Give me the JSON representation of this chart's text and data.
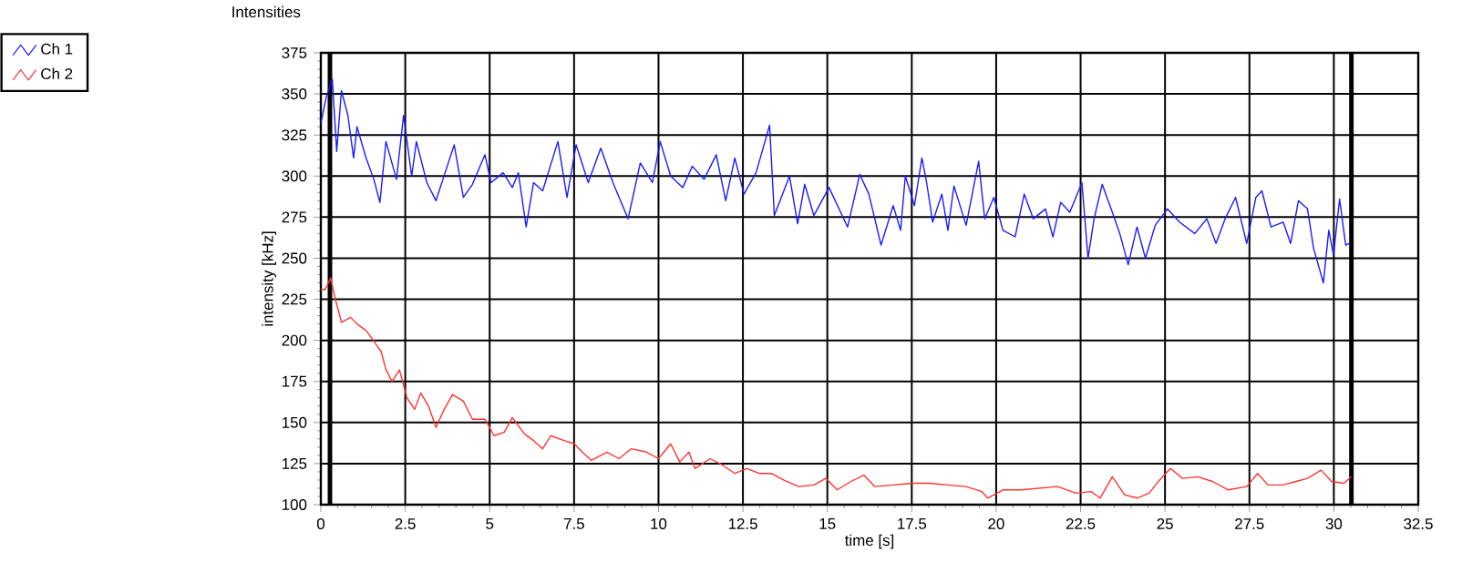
{
  "chart_data": {
    "type": "line",
    "title": "Intensities",
    "xlabel": "time [s]",
    "ylabel": "intensity [kHz]",
    "xlim": [
      0,
      32.5
    ],
    "ylim": [
      100,
      375
    ],
    "xticks": [
      0,
      2.5,
      5,
      7.5,
      10,
      12.5,
      15,
      17.5,
      20,
      22.5,
      25,
      27.5,
      30,
      32.5
    ],
    "yticks": [
      100,
      125,
      150,
      175,
      200,
      225,
      250,
      275,
      300,
      325,
      350,
      375
    ],
    "grid": true,
    "legend": "top left",
    "ref_lines": [
      {
        "axis": "x",
        "value": 0.27,
        "color": "#000000"
      },
      {
        "axis": "x",
        "value": 30.52,
        "color": "#000000"
      }
    ],
    "series": [
      {
        "name": "Ch 1",
        "color": "#1a1aff",
        "x": [
          0,
          0.16,
          0.34,
          0.47,
          0.61,
          0.8,
          0.97,
          1.07,
          1.34,
          1.57,
          1.75,
          1.93,
          2.24,
          2.45,
          2.69,
          2.83,
          3.14,
          3.41,
          3.68,
          3.95,
          4.22,
          4.49,
          4.86,
          5.04,
          5.4,
          5.67,
          5.85,
          6.08,
          6.3,
          6.57,
          7.02,
          7.29,
          7.56,
          7.92,
          8.29,
          8.65,
          9.1,
          9.46,
          9.82,
          10.05,
          10.36,
          10.72,
          11.0,
          11.35,
          11.71,
          11.99,
          12.26,
          12.53,
          12.89,
          13.29,
          13.43,
          13.88,
          14.12,
          14.33,
          14.6,
          15.05,
          15.6,
          15.96,
          16.23,
          16.59,
          16.95,
          17.17,
          17.31,
          17.58,
          17.8,
          17.94,
          18.12,
          18.39,
          18.57,
          18.75,
          19.11,
          19.48,
          19.66,
          19.93,
          20.2,
          20.56,
          20.83,
          21.1,
          21.46,
          21.68,
          21.91,
          22.18,
          22.54,
          22.72,
          22.9,
          23.14,
          23.44,
          23.66,
          23.91,
          24.17,
          24.42,
          24.71,
          25.07,
          25.43,
          25.88,
          26.24,
          26.51,
          26.78,
          27.09,
          27.42,
          27.69,
          27.87,
          28.14,
          28.5,
          28.72,
          28.95,
          29.22,
          29.4,
          29.69,
          29.85,
          29.99,
          30.17,
          30.35,
          30.48
        ],
        "values": [
          332,
          348,
          359,
          315,
          352,
          337,
          311,
          330,
          311,
          298,
          284,
          321,
          298,
          337,
          300,
          321,
          296,
          285,
          302,
          319,
          287,
          295,
          313,
          296,
          302,
          293,
          302,
          269,
          296,
          291,
          321,
          287,
          319,
          296,
          317,
          296,
          274,
          308,
          296,
          321,
          300,
          293,
          306,
          298,
          313,
          285,
          311,
          289,
          302,
          331,
          276,
          300,
          271,
          295,
          276,
          293,
          269,
          301,
          289,
          258,
          282,
          267,
          300,
          282,
          311,
          296,
          272,
          289,
          267,
          294,
          270,
          309,
          274,
          287,
          267,
          263,
          289,
          274,
          280,
          263,
          284,
          278,
          296,
          250,
          274,
          295,
          278,
          265,
          246,
          269,
          250,
          270,
          280,
          272,
          265,
          274,
          259,
          274,
          287,
          259,
          287,
          291,
          269,
          272,
          259,
          285,
          280,
          256,
          235,
          267,
          252,
          286,
          258,
          259
        ]
      },
      {
        "name": "Ch 2",
        "color": "#ff3333",
        "x": [
          0,
          0.13,
          0.29,
          0.43,
          0.61,
          0.88,
          1.07,
          1.34,
          1.52,
          1.79,
          1.93,
          2.11,
          2.33,
          2.55,
          2.78,
          2.96,
          3.19,
          3.41,
          3.63,
          3.9,
          4.22,
          4.49,
          4.86,
          5.13,
          5.43,
          5.67,
          6.03,
          6.3,
          6.57,
          6.81,
          7.2,
          7.51,
          7.74,
          8.01,
          8.47,
          8.83,
          9.19,
          9.64,
          10.0,
          10.36,
          10.63,
          10.9,
          11.08,
          11.53,
          11.9,
          12.26,
          12.62,
          12.98,
          13.34,
          13.7,
          14.15,
          14.6,
          14.96,
          15.29,
          15.69,
          16.08,
          16.41,
          16.95,
          17.53,
          18.03,
          18.57,
          19.11,
          19.57,
          19.75,
          20.2,
          20.74,
          21.28,
          21.82,
          22.36,
          22.81,
          23.08,
          23.44,
          23.8,
          24.17,
          24.53,
          24.84,
          25.16,
          25.52,
          25.97,
          26.42,
          26.87,
          27.42,
          27.74,
          28.05,
          28.5,
          28.86,
          29.22,
          29.62,
          29.94,
          30.3,
          30.52
        ],
        "values": [
          231,
          231,
          238,
          225,
          211,
          214,
          210,
          206,
          201,
          193,
          182,
          175,
          182,
          165,
          158,
          168,
          160,
          147,
          157,
          167,
          163,
          152,
          152,
          142,
          144,
          153,
          143,
          139,
          134,
          142,
          139,
          137,
          132,
          127,
          132,
          128,
          134,
          132,
          128,
          137,
          126,
          132,
          122,
          128,
          124,
          119,
          122,
          119,
          119,
          115,
          111,
          112,
          116,
          109,
          114,
          118,
          111,
          112,
          113,
          113,
          112,
          111,
          108,
          104,
          109,
          109,
          110,
          111,
          107,
          108,
          104,
          117,
          106,
          104,
          107,
          115,
          122,
          116,
          117,
          114,
          109,
          111,
          119,
          112,
          112,
          114,
          116,
          121,
          114,
          113,
          117
        ]
      }
    ]
  }
}
